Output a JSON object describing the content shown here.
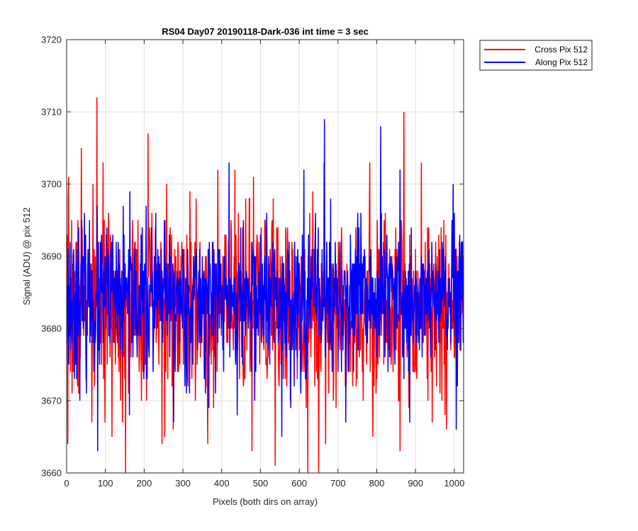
{
  "chart_data": {
    "type": "line",
    "title": "RS04 Day07 20190118-Dark-036 int time = 3 sec",
    "xlabel": "Pixels (both dirs on array)",
    "ylabel": "Signal (ADU) @ pix 512",
    "xlim": [
      0,
      1024
    ],
    "ylim": [
      3660,
      3720
    ],
    "xticks": [
      0,
      100,
      200,
      300,
      400,
      500,
      600,
      700,
      800,
      900,
      1000
    ],
    "yticks": [
      3660,
      3670,
      3680,
      3690,
      3700,
      3710,
      3720
    ],
    "grid": true,
    "legend_position": "outside top-right",
    "series": [
      {
        "name": "Cross Pix 512",
        "color": "#ff0000",
        "x_start": 0,
        "x_step": 1,
        "mean": 3683,
        "noise_sd": 6.3,
        "seed": 7,
        "peaks": [
          [
            5,
            3701
          ],
          [
            38,
            3705
          ],
          [
            78,
            3712
          ],
          [
            210,
            3707
          ],
          [
            258,
            3700
          ],
          [
            482,
            3701
          ],
          [
            664,
            3703
          ],
          [
            870,
            3710
          ],
          [
            915,
            3703
          ],
          [
            980,
            3700
          ]
        ],
        "troughs": [
          [
            3,
            3664
          ],
          [
            65,
            3667
          ],
          [
            152,
            3660
          ],
          [
            246,
            3664
          ],
          [
            364,
            3664
          ],
          [
            478,
            3663
          ],
          [
            538,
            3661
          ],
          [
            622,
            3660
          ],
          [
            650,
            3660
          ],
          [
            790,
            3665
          ],
          [
            860,
            3663
          ],
          [
            980,
            3666
          ]
        ]
      },
      {
        "name": "Along Pix 512",
        "color": "#0000ff",
        "x_start": 0,
        "x_step": 1,
        "mean": 3684,
        "noise_sd": 5.0,
        "seed": 23,
        "peaks": [
          [
            419,
            3703
          ],
          [
            612,
            3702
          ],
          [
            665,
            3709
          ],
          [
            810,
            3708
          ],
          [
            860,
            3702
          ]
        ],
        "troughs": [
          [
            80,
            3663
          ],
          [
            162,
            3668
          ],
          [
            276,
            3667
          ],
          [
            440,
            3668
          ],
          [
            555,
            3665
          ],
          [
            720,
            3667
          ],
          [
            885,
            3667
          ],
          [
            1005,
            3666
          ]
        ]
      }
    ]
  }
}
